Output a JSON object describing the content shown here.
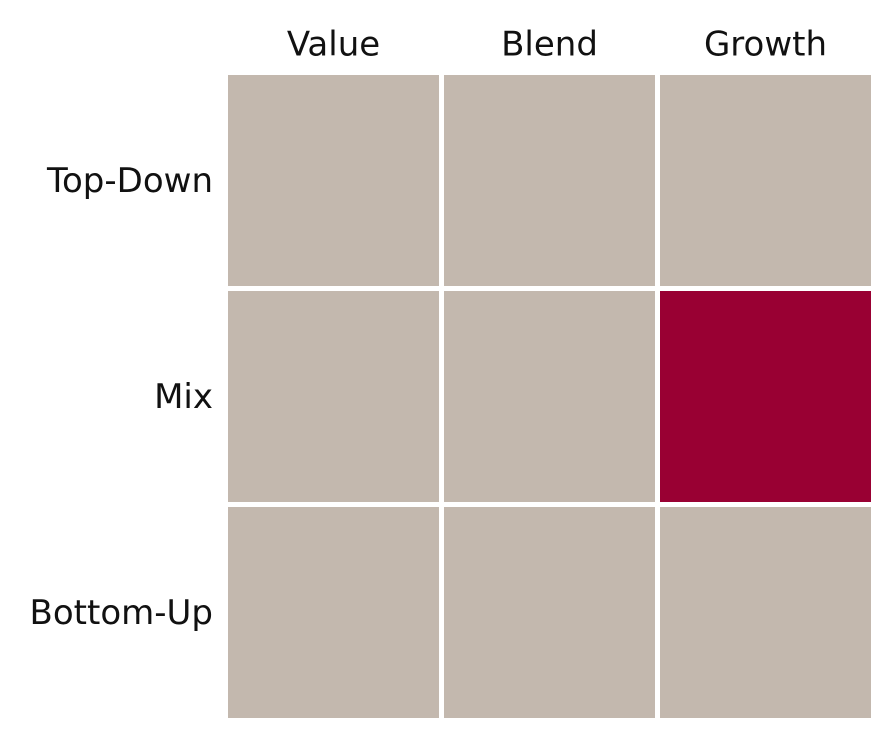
{
  "columns": [
    "Value",
    "Blend",
    "Growth"
  ],
  "rows": [
    "Top-Down",
    "Mix",
    "Bottom-Up"
  ],
  "highlight": {
    "row": 1,
    "column": 2
  },
  "cell_color": "#c3b8ae",
  "highlight_color": "#990033"
}
